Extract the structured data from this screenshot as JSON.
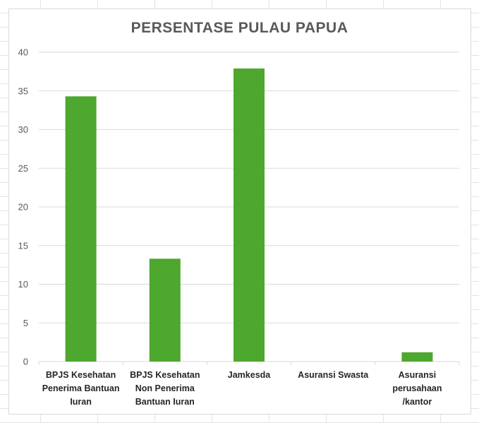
{
  "chart_data": {
    "type": "bar",
    "title": "PERSENTASE PULAU PAPUA",
    "xlabel": "",
    "ylabel": "",
    "ylim": [
      0,
      40
    ],
    "yticks": [
      0,
      5,
      10,
      15,
      20,
      25,
      30,
      35,
      40
    ],
    "grid": true,
    "legend": "none",
    "categories": [
      [
        "BPJS Kesehatan",
        "Penerima Bantuan",
        "Iuran"
      ],
      [
        "BPJS Kesehatan",
        "Non Penerima",
        "Bantuan Iuran"
      ],
      [
        "Jamkesda"
      ],
      [
        "Asuransi Swasta"
      ],
      [
        "Asuransi",
        "perusahaan",
        "/kantor"
      ]
    ],
    "values": [
      34.3,
      13.3,
      37.9,
      0,
      1.2
    ],
    "bar_color": "#4ea72e"
  }
}
